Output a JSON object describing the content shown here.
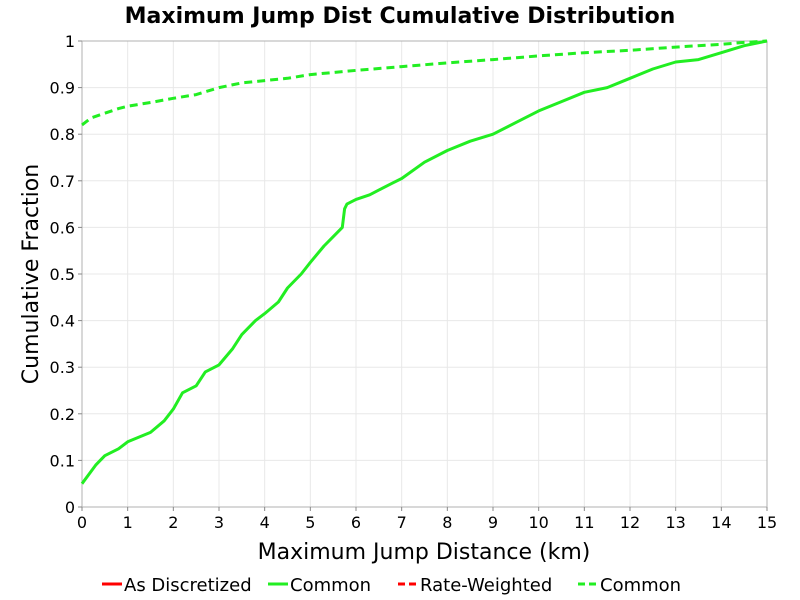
{
  "chart_data": {
    "type": "line",
    "title": "Maximum Jump Dist Cumulative Distribution",
    "xlabel": "Maximum Jump Distance (km)",
    "ylabel": "Cumulative Fraction",
    "xlim": [
      0,
      15
    ],
    "ylim": [
      0,
      1
    ],
    "xticks": [
      "0",
      "1",
      "2",
      "3",
      "4",
      "5",
      "6",
      "7",
      "8",
      "9",
      "10",
      "11",
      "12",
      "13",
      "14",
      "15"
    ],
    "yticks": [
      "0",
      "0.1",
      "0.2",
      "0.3",
      "0.4",
      "0.5",
      "0.6",
      "0.7",
      "0.8",
      "0.9",
      "1"
    ],
    "grid": true,
    "legend_position": "bottom",
    "legend": [
      {
        "label": "As Discretized",
        "color": "#ff0000",
        "dash": false
      },
      {
        "label": "Common",
        "color": "#22ee22",
        "dash": false
      },
      {
        "label": "Rate-Weighted",
        "color": "#ff0000",
        "dash": true
      },
      {
        "label": "Common",
        "color": "#22ee22",
        "dash": true
      }
    ],
    "series": [
      {
        "name": "Common",
        "color": "#22ee22",
        "dash": false,
        "x": [
          0,
          0.3,
          0.5,
          0.8,
          1.0,
          1.5,
          1.8,
          2.0,
          2.2,
          2.5,
          2.7,
          3.0,
          3.3,
          3.5,
          3.8,
          4.0,
          4.3,
          4.5,
          4.8,
          5.0,
          5.3,
          5.5,
          5.7,
          5.75,
          5.8,
          6.0,
          6.3,
          6.5,
          6.8,
          7.0,
          7.5,
          8.0,
          8.5,
          9.0,
          9.5,
          10.0,
          10.5,
          11.0,
          11.5,
          12.0,
          12.5,
          13.0,
          13.5,
          14.0,
          14.5,
          15.0
        ],
        "values": [
          0.05,
          0.09,
          0.11,
          0.125,
          0.14,
          0.16,
          0.185,
          0.21,
          0.245,
          0.26,
          0.29,
          0.305,
          0.34,
          0.37,
          0.4,
          0.415,
          0.44,
          0.47,
          0.5,
          0.525,
          0.56,
          0.58,
          0.6,
          0.64,
          0.65,
          0.66,
          0.67,
          0.68,
          0.695,
          0.705,
          0.74,
          0.765,
          0.785,
          0.8,
          0.825,
          0.85,
          0.87,
          0.89,
          0.9,
          0.92,
          0.94,
          0.955,
          0.96,
          0.975,
          0.99,
          1.0
        ]
      },
      {
        "name": "Common",
        "color": "#22ee22",
        "dash": true,
        "x": [
          0,
          0.2,
          0.5,
          0.8,
          1.0,
          1.5,
          2.0,
          2.5,
          3.0,
          3.5,
          4.0,
          4.5,
          5.0,
          6.0,
          7.0,
          8.0,
          9.0,
          10.0,
          11.0,
          12.0,
          13.0,
          14.0,
          14.5,
          15.0
        ],
        "values": [
          0.82,
          0.835,
          0.845,
          0.855,
          0.86,
          0.868,
          0.877,
          0.885,
          0.9,
          0.91,
          0.915,
          0.92,
          0.928,
          0.937,
          0.945,
          0.953,
          0.96,
          0.968,
          0.975,
          0.98,
          0.987,
          0.993,
          0.997,
          1.0
        ]
      }
    ]
  }
}
